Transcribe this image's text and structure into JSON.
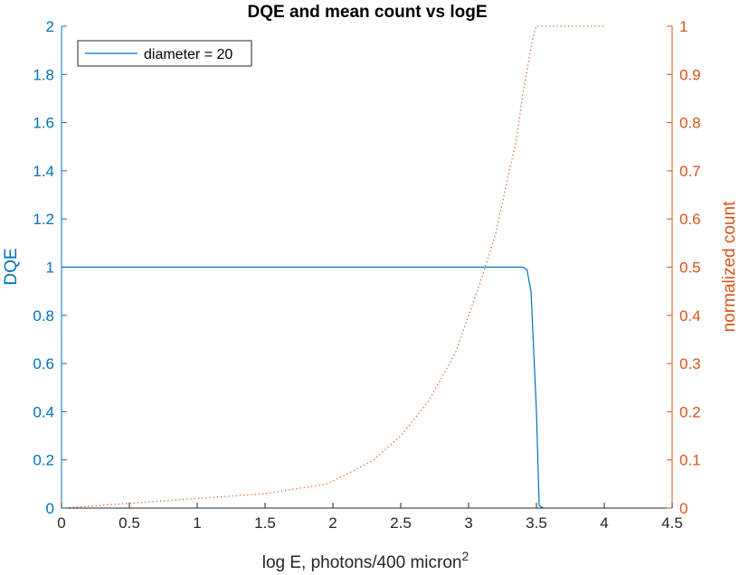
{
  "chart_data": {
    "type": "line",
    "title": "DQE and mean count vs logE",
    "xlabel": "log E, photons/400 micron",
    "xlabel_superscript": "2",
    "ylabel_left": "DQE",
    "ylabel_right": "normalized count",
    "xlim": [
      0,
      4.5
    ],
    "ylim_left": [
      0,
      2
    ],
    "ylim_right": [
      0,
      1
    ],
    "x_ticks": [
      "0",
      "0.5",
      "1",
      "1.5",
      "2",
      "2.5",
      "3",
      "3.5",
      "4",
      "4.5"
    ],
    "y_ticks_left": [
      "0",
      "0.2",
      "0.4",
      "0.6",
      "0.8",
      "1",
      "1.2",
      "1.4",
      "1.6",
      "1.8",
      "2"
    ],
    "y_ticks_right": [
      "0",
      "0.1",
      "0.2",
      "0.3",
      "0.4",
      "0.5",
      "0.6",
      "0.7",
      "0.8",
      "0.9",
      "1"
    ],
    "grid": false,
    "legend_position": "top-left",
    "colors": {
      "left_axis": "#0072BD",
      "right_axis": "#D95319"
    },
    "series": [
      {
        "name": "diameter = 20",
        "axis": "left",
        "style": "solid",
        "x": [
          0,
          0.5,
          1,
          1.5,
          2,
          2.5,
          3,
          3.4,
          3.43,
          3.46,
          3.5,
          3.52,
          3.55
        ],
        "y": [
          1,
          1,
          1,
          1,
          1,
          1,
          1,
          1,
          0.99,
          0.9,
          0.4,
          0.01,
          0
        ]
      },
      {
        "axis": "right",
        "style": "dotted",
        "x": [
          0,
          0.5,
          1,
          1.5,
          1.95,
          2.1,
          2.3,
          2.5,
          2.7,
          2.9,
          3.0,
          3.1,
          3.2,
          3.3,
          3.35,
          3.4,
          3.45,
          3.48,
          3.5,
          3.52,
          3.6,
          4.0
        ],
        "y": [
          0,
          0.01,
          0.02,
          0.03,
          0.05,
          0.07,
          0.1,
          0.15,
          0.22,
          0.32,
          0.4,
          0.48,
          0.57,
          0.7,
          0.76,
          0.86,
          0.94,
          0.985,
          1,
          1,
          1,
          1
        ]
      }
    ]
  }
}
